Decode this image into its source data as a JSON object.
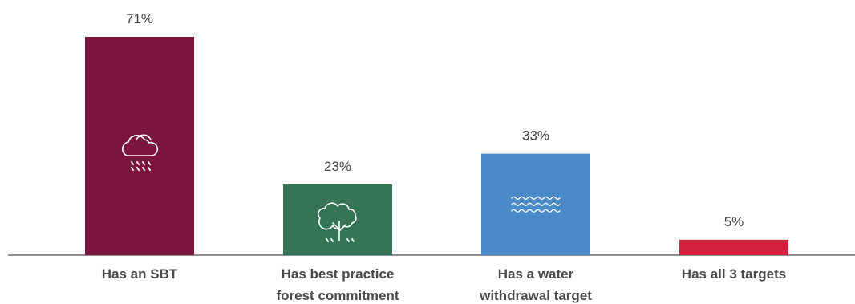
{
  "chart_data": {
    "type": "bar",
    "categories": [
      [
        "Has an SBT"
      ],
      [
        "Has best practice",
        "forest commitment"
      ],
      [
        "Has a water",
        "withdrawal target"
      ],
      [
        "Has all 3 targets"
      ]
    ],
    "values": [
      71,
      23,
      33,
      5
    ],
    "value_labels": [
      "71%",
      "23%",
      "33%",
      "5%"
    ],
    "ylim": [
      0,
      71
    ],
    "grid": false,
    "legend": "none",
    "colors": [
      "#7c1640",
      "#357455",
      "#4b8ac8",
      "#d3203d"
    ],
    "icons": [
      "cloud-rain-icon",
      "tree-icon",
      "water-waves-icon",
      ""
    ]
  }
}
